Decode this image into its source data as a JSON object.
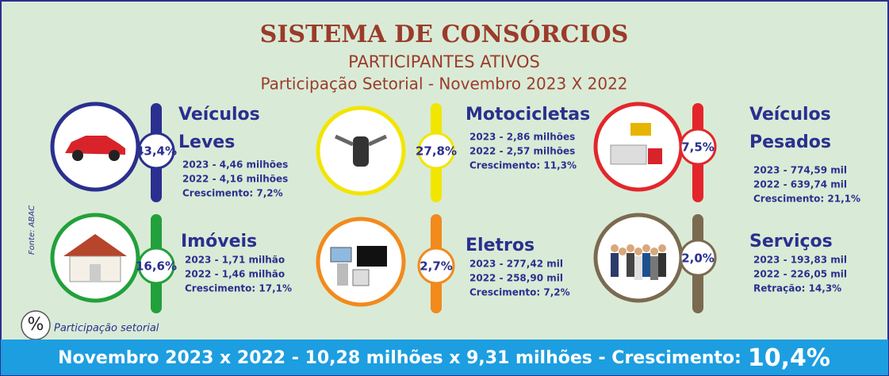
{
  "header": {
    "title": "SISTEMA DE CONSÓRCIOS",
    "subtitle": "PARTICIPANTES ATIVOS",
    "period": "Participação Setorial - Novembro 2023 X 2022"
  },
  "sectors": [
    {
      "name_lines": [
        "Veículos",
        "Leves"
      ],
      "share": "43,4%",
      "color": "#2b2f8f",
      "lines": [
        "2023 - 4,46 milhões",
        "2022 - 4,16 milhões",
        "Crescimento: 7,2%"
      ]
    },
    {
      "name_lines": [
        "Motocicletas"
      ],
      "share": "27,8%",
      "color": "#f2e500",
      "lines": [
        "2023 - 2,86 milhões",
        "2022 - 2,57 milhões",
        "Crescimento: 11,3%"
      ]
    },
    {
      "name_lines": [
        "Veículos",
        "Pesados"
      ],
      "share": "7,5%",
      "color": "#e3262b",
      "lines": [
        "2023 - 774,59 mil",
        "2022 - 639,74 mil",
        "Crescimento: 21,1%"
      ]
    },
    {
      "name_lines": [
        "Imóveis"
      ],
      "share": "16,6%",
      "color": "#22a03b",
      "lines": [
        "2023 - 1,71 milhão",
        "2022 - 1,46 milhão",
        "Crescimento: 17,1%"
      ]
    },
    {
      "name_lines": [
        "Eletros"
      ],
      "share": "2,7%",
      "color": "#f28a1c",
      "lines": [
        "2023 - 277,42 mil",
        "2022 - 258,90 mil",
        "Crescimento: 7,2%"
      ]
    },
    {
      "name_lines": [
        "Serviços"
      ],
      "share": "2,0%",
      "color": "#7b6a50",
      "lines": [
        "2023 - 193,83 mil",
        "2022 - 226,05 mil",
        "Retração: 14,3%"
      ]
    }
  ],
  "source": "Fonte: ABAC",
  "legend": {
    "symbol": "%",
    "label": "Participação setorial"
  },
  "footer": {
    "text": "Novembro 2023 x 2022 - 10,28 milhões x 9,31 milhões - Crescimento:",
    "highlight": "10,4%"
  }
}
